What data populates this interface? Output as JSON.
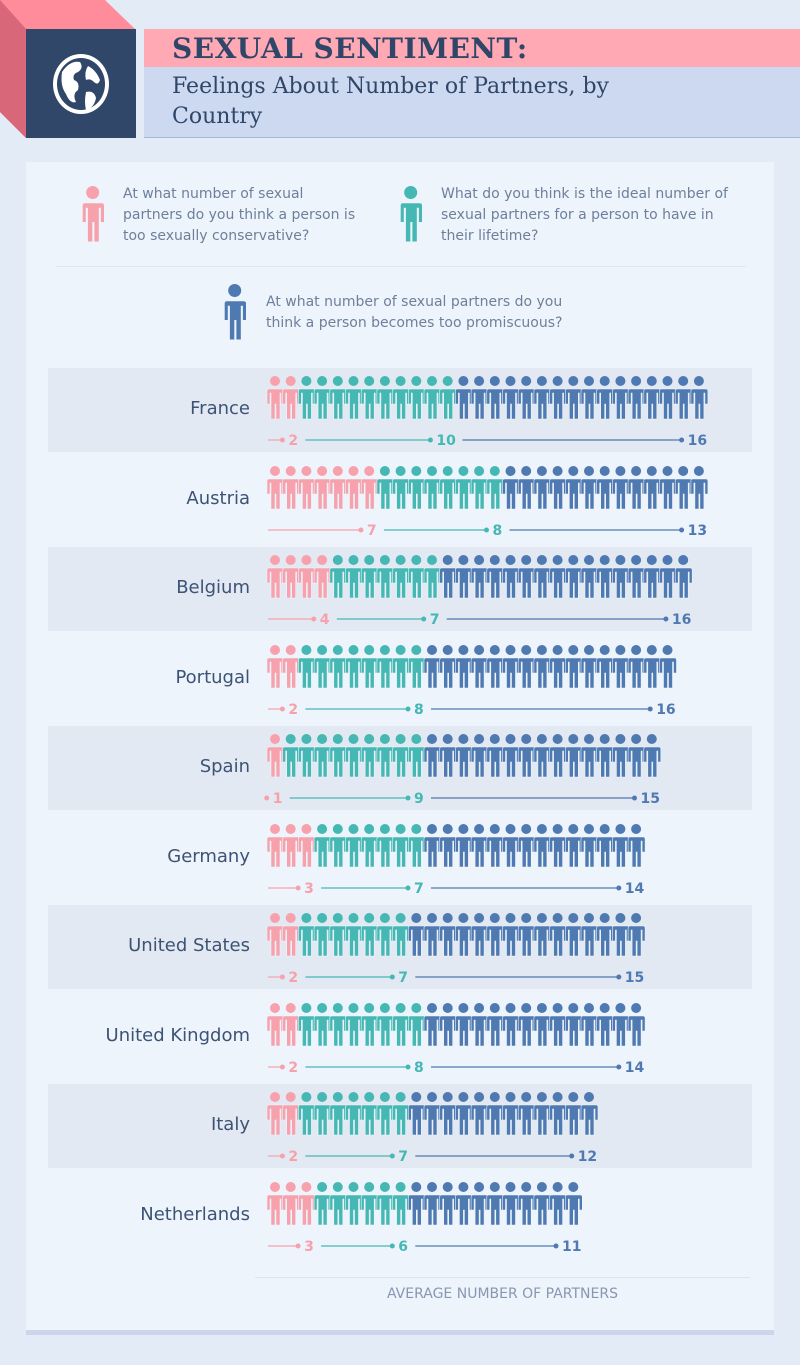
{
  "header": {
    "title": "SEXUAL SENTIMENT:",
    "subtitle": "Feelings About Number of Partners, by Country",
    "icon": "globe-icon"
  },
  "colors": {
    "conservative": "#f7a1ad",
    "ideal": "#45b8b4",
    "promiscuous": "#4f79b1",
    "header_dark": "#2f4668",
    "title_band": "#ffa9b5"
  },
  "legend": [
    {
      "key": "conservative",
      "text": "At what number of sexual partners do you think a person is too sexually conservative?"
    },
    {
      "key": "ideal",
      "text": "What do you think is the ideal number of sexual partners for a person to have in their lifetime?"
    },
    {
      "key": "promiscuous",
      "text": "At what number of sexual partners do you think a person becomes too promiscuous?"
    }
  ],
  "chart_data": {
    "type": "pictogram-bar",
    "xlabel": "AVERAGE NUMBER OF PARTNERS",
    "categories": [
      "France",
      "Austria",
      "Belgium",
      "Portugal",
      "Spain",
      "Germany",
      "United States",
      "United Kingdom",
      "Italy",
      "Netherlands"
    ],
    "series": [
      {
        "key": "conservative",
        "values": [
          2,
          7,
          4,
          2,
          1,
          3,
          2,
          2,
          2,
          3
        ]
      },
      {
        "key": "ideal",
        "values": [
          10,
          8,
          7,
          8,
          9,
          7,
          7,
          8,
          7,
          6
        ]
      },
      {
        "key": "promiscuous",
        "values": [
          16,
          13,
          16,
          16,
          15,
          14,
          15,
          14,
          12,
          11
        ]
      }
    ]
  }
}
